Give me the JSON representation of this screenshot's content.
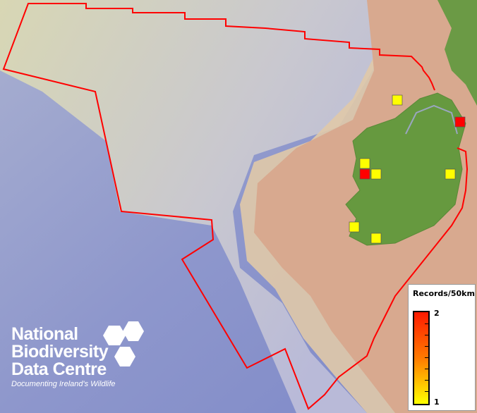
{
  "legend": {
    "title": "Records/50km",
    "max_label": "2",
    "min_label": "1",
    "color_max": "#ff1a00",
    "color_min": "#ffff00"
  },
  "logo": {
    "line1": "National",
    "line2": "Biodiversity",
    "line3": "Data Centre",
    "tagline": "Documenting Ireland's Wildlife"
  },
  "boundary_color": "#ff0000",
  "records": [
    {
      "value": 1,
      "color": "#ffff00"
    },
    {
      "value": 2,
      "color": "#ff0000"
    },
    {
      "value": 1,
      "color": "#ffff00"
    },
    {
      "value": 2,
      "color": "#ff0000"
    },
    {
      "value": 1,
      "color": "#ffff00"
    },
    {
      "value": 1,
      "color": "#ffff00"
    },
    {
      "value": 1,
      "color": "#ffff00"
    },
    {
      "value": 1,
      "color": "#ffff00"
    }
  ]
}
